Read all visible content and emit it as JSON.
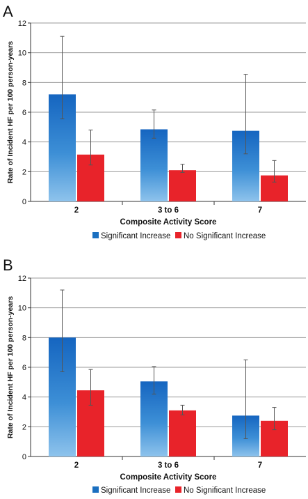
{
  "chart_data": [
    {
      "panel": "A",
      "type": "bar",
      "categories": [
        "2",
        "3 to 6",
        "7"
      ],
      "series": [
        {
          "name": "Significant Increase",
          "color": "#1a6fc0",
          "values": [
            7.2,
            4.85,
            4.75
          ],
          "err_low": [
            5.55,
            4.25,
            3.2
          ],
          "err_high": [
            11.1,
            6.15,
            8.55
          ]
        },
        {
          "name": "No Significant Increase",
          "color": "#e8232a",
          "values": [
            3.15,
            2.1,
            1.75
          ],
          "err_low": [
            2.45,
            1.95,
            1.3
          ],
          "err_high": [
            4.8,
            2.5,
            2.75
          ]
        }
      ],
      "xlabel": "Composite Activity Score",
      "ylabel": "Rate of Incident HF per 100 person-years",
      "ylim": [
        0,
        12
      ],
      "yticks": [
        0,
        2,
        4,
        6,
        8,
        10,
        12
      ],
      "grid": true,
      "legend": "bottom-center"
    },
    {
      "panel": "B",
      "type": "bar",
      "categories": [
        "2",
        "3 to 6",
        "7"
      ],
      "series": [
        {
          "name": "Significant Increase",
          "color": "#1a6fc0",
          "values": [
            8.0,
            5.05,
            2.75
          ],
          "err_low": [
            5.7,
            4.2,
            1.2
          ],
          "err_high": [
            11.2,
            6.05,
            6.5
          ]
        },
        {
          "name": "No Significant Increase",
          "color": "#e8232a",
          "values": [
            4.45,
            3.1,
            2.4
          ],
          "err_low": [
            3.45,
            2.8,
            1.8
          ],
          "err_high": [
            5.85,
            3.45,
            3.3
          ]
        }
      ],
      "xlabel": "Composite Activity Score",
      "ylabel": "Rate of Incident HF per 100 person-years",
      "ylim": [
        0,
        12
      ],
      "yticks": [
        0,
        2,
        4,
        6,
        8,
        10,
        12
      ],
      "grid": true,
      "legend": "bottom-center"
    }
  ]
}
